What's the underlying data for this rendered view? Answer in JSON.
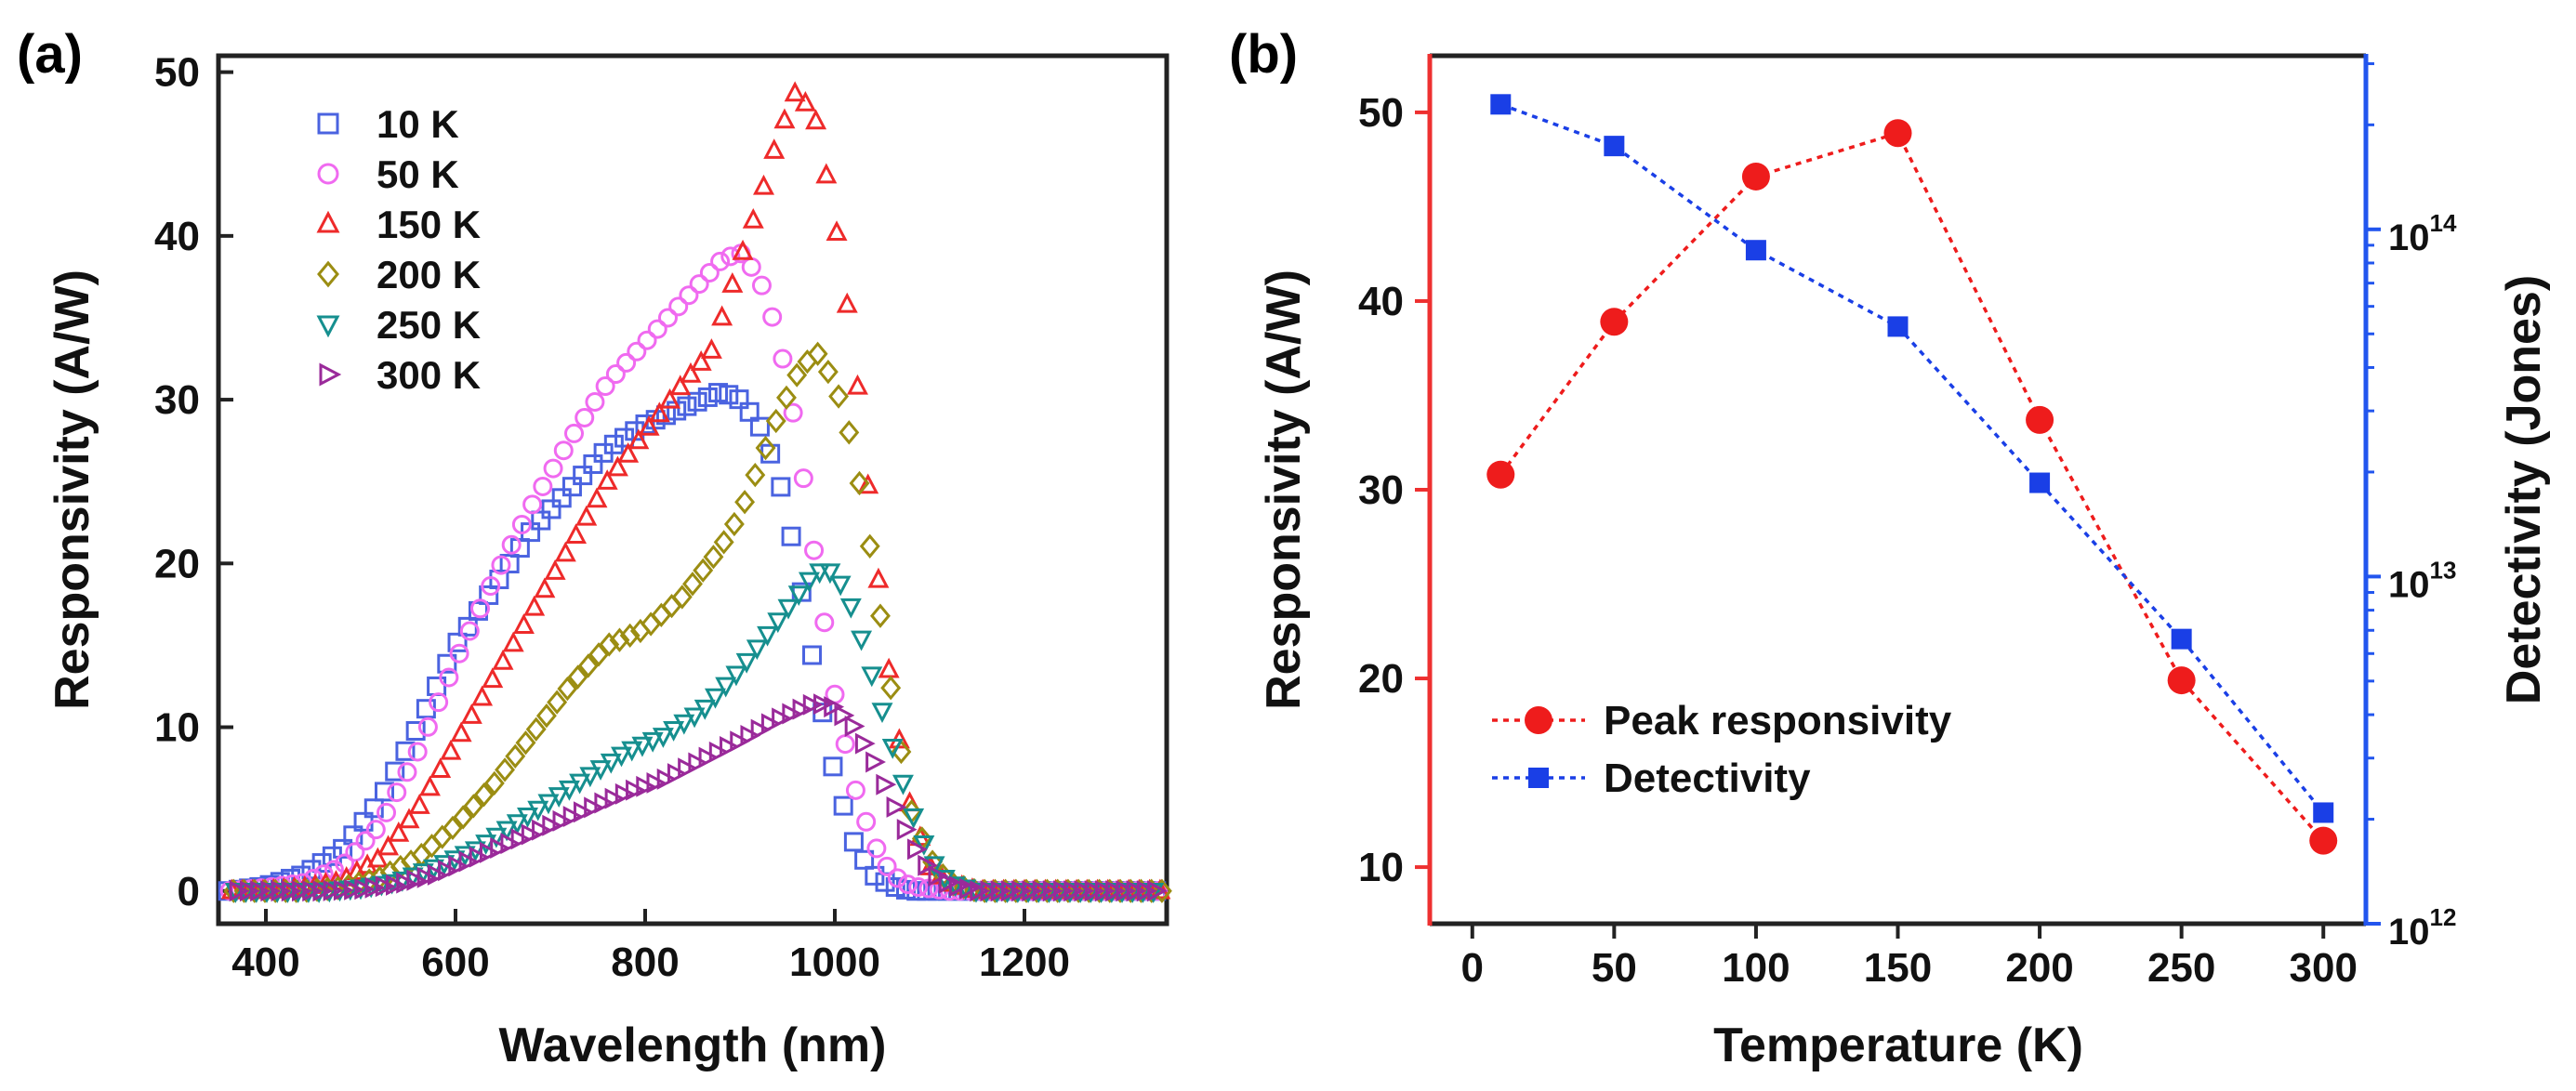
{
  "figure": {
    "panel_a_label": "(a)",
    "panel_b_label": "(b)"
  },
  "colors": {
    "s10": "#4a63e0",
    "s50": "#f06af0",
    "s150": "#ee2a2a",
    "s200": "#9b8d12",
    "s250": "#168f8f",
    "s300": "#9a2a9a",
    "peak": "#ee1c1c",
    "detect": "#1a3fe6",
    "left_axis_b": "#ee3030",
    "right_axis_b": "#2255ee"
  },
  "chart_data": [
    {
      "type": "scatter",
      "panel": "a",
      "title": "",
      "xlabel": "Wavelength (nm)",
      "ylabel": "Responsivity (A/W)",
      "xlim": [
        350,
        1350
      ],
      "ylim": [
        -2,
        51
      ],
      "xticks": [
        400,
        600,
        800,
        1000,
        1200
      ],
      "yticks": [
        0,
        10,
        20,
        30,
        40,
        50
      ],
      "legend_placement": "top-left",
      "series": [
        {
          "name": "10 K",
          "marker": "square",
          "color_key": "s10",
          "points": [
            [
              360,
              0
            ],
            [
              400,
              0.3
            ],
            [
              440,
              1
            ],
            [
              480,
              2.5
            ],
            [
              520,
              5.5
            ],
            [
              560,
              10
            ],
            [
              600,
              15
            ],
            [
              640,
              18.5
            ],
            [
              680,
              22
            ],
            [
              720,
              24.5
            ],
            [
              760,
              27
            ],
            [
              800,
              28.5
            ],
            [
              840,
              29.5
            ],
            [
              880,
              30.5
            ],
            [
              900,
              30
            ],
            [
              920,
              28.5
            ],
            [
              940,
              25.5
            ],
            [
              960,
              20
            ],
            [
              980,
              13
            ],
            [
              1000,
              7
            ],
            [
              1020,
              3
            ],
            [
              1040,
              1
            ],
            [
              1060,
              0.3
            ],
            [
              1080,
              0
            ],
            [
              1120,
              0
            ],
            [
              1200,
              0
            ],
            [
              1350,
              0
            ]
          ]
        },
        {
          "name": "50 K",
          "marker": "circle",
          "color_key": "s50",
          "points": [
            [
              360,
              0
            ],
            [
              400,
              0.2
            ],
            [
              440,
              0.5
            ],
            [
              480,
              1.5
            ],
            [
              520,
              4
            ],
            [
              560,
              8.5
            ],
            [
              600,
              14
            ],
            [
              640,
              19
            ],
            [
              680,
              23.5
            ],
            [
              720,
              27.5
            ],
            [
              760,
              31
            ],
            [
              800,
              33.5
            ],
            [
              840,
              36
            ],
            [
              880,
              38.5
            ],
            [
              900,
              39
            ],
            [
              920,
              37.5
            ],
            [
              940,
              34
            ],
            [
              960,
              28
            ],
            [
              980,
              20
            ],
            [
              1000,
              12
            ],
            [
              1020,
              6.5
            ],
            [
              1040,
              3
            ],
            [
              1060,
              1
            ],
            [
              1080,
              0.3
            ],
            [
              1120,
              0
            ],
            [
              1200,
              0
            ],
            [
              1350,
              0
            ]
          ]
        },
        {
          "name": "150 K",
          "marker": "triangle-up",
          "color_key": "s150",
          "points": [
            [
              360,
              0
            ],
            [
              400,
              0
            ],
            [
              440,
              0.2
            ],
            [
              480,
              0.6
            ],
            [
              520,
              2
            ],
            [
              560,
              5
            ],
            [
              600,
              9
            ],
            [
              640,
              13
            ],
            [
              680,
              17
            ],
            [
              720,
              21
            ],
            [
              760,
              25
            ],
            [
              800,
              28
            ],
            [
              840,
              31
            ],
            [
              870,
              33
            ],
            [
              900,
              38.5
            ],
            [
              920,
              42
            ],
            [
              940,
              46
            ],
            [
              960,
              49
            ],
            [
              980,
              47
            ],
            [
              1000,
              41
            ],
            [
              1020,
              33
            ],
            [
              1040,
              22
            ],
            [
              1060,
              12
            ],
            [
              1080,
              5
            ],
            [
              1100,
              1.5
            ],
            [
              1120,
              0.5
            ],
            [
              1150,
              0
            ],
            [
              1200,
              0
            ],
            [
              1350,
              0
            ]
          ]
        },
        {
          "name": "200 K",
          "marker": "diamond",
          "color_key": "s200",
          "points": [
            [
              360,
              0
            ],
            [
              440,
              0
            ],
            [
              480,
              0.2
            ],
            [
              520,
              0.8
            ],
            [
              560,
              2
            ],
            [
              600,
              4
            ],
            [
              640,
              6.5
            ],
            [
              680,
              9.5
            ],
            [
              720,
              12.5
            ],
            [
              760,
              15
            ],
            [
              800,
              16
            ],
            [
              840,
              18
            ],
            [
              880,
              21
            ],
            [
              900,
              23
            ],
            [
              920,
              26
            ],
            [
              940,
              29
            ],
            [
              960,
              31.5
            ],
            [
              980,
              33
            ],
            [
              1000,
              31
            ],
            [
              1020,
              27
            ],
            [
              1040,
              20
            ],
            [
              1060,
              12
            ],
            [
              1080,
              5
            ],
            [
              1100,
              2
            ],
            [
              1120,
              0.5
            ],
            [
              1150,
              0
            ],
            [
              1200,
              0
            ],
            [
              1350,
              0
            ]
          ]
        },
        {
          "name": "250 K",
          "marker": "triangle-down",
          "color_key": "s250",
          "points": [
            [
              360,
              0
            ],
            [
              460,
              0
            ],
            [
              500,
              0.2
            ],
            [
              540,
              0.6
            ],
            [
              580,
              1.5
            ],
            [
              620,
              2.5
            ],
            [
              660,
              4
            ],
            [
              700,
              5.5
            ],
            [
              740,
              7
            ],
            [
              780,
              8.5
            ],
            [
              820,
              9.5
            ],
            [
              860,
              11
            ],
            [
              900,
              13.5
            ],
            [
              940,
              16.5
            ],
            [
              980,
              19.5
            ],
            [
              1000,
              19.5
            ],
            [
              1020,
              17
            ],
            [
              1040,
              13
            ],
            [
              1060,
              9
            ],
            [
              1080,
              5
            ],
            [
              1100,
              2
            ],
            [
              1120,
              0.5
            ],
            [
              1150,
              0
            ],
            [
              1200,
              0
            ],
            [
              1350,
              0
            ]
          ]
        },
        {
          "name": "300 K",
          "marker": "triangle-right",
          "color_key": "s300",
          "points": [
            [
              360,
              0
            ],
            [
              460,
              0
            ],
            [
              500,
              0.1
            ],
            [
              540,
              0.4
            ],
            [
              580,
              1
            ],
            [
              620,
              2
            ],
            [
              660,
              3
            ],
            [
              700,
              4
            ],
            [
              740,
              5
            ],
            [
              780,
              6
            ],
            [
              820,
              6.8
            ],
            [
              860,
              8
            ],
            [
              900,
              9.2
            ],
            [
              940,
              10.5
            ],
            [
              980,
              11.5
            ],
            [
              1000,
              11.2
            ],
            [
              1020,
              10
            ],
            [
              1040,
              8
            ],
            [
              1060,
              5.5
            ],
            [
              1080,
              3
            ],
            [
              1100,
              1.2
            ],
            [
              1120,
              0.4
            ],
            [
              1150,
              0
            ],
            [
              1200,
              0
            ],
            [
              1350,
              0
            ]
          ]
        }
      ]
    },
    {
      "type": "line",
      "panel": "b",
      "title": "",
      "xlabel": "Temperature (K)",
      "ylabel": "Responsivity (A/W)",
      "ylabel_right": "Detectivity (Jones)",
      "xlim": [
        -15,
        315
      ],
      "ylim": [
        7,
        53
      ],
      "ylim_right_log10": [
        12,
        14.5
      ],
      "xticks": [
        0,
        50,
        100,
        150,
        200,
        250,
        300
      ],
      "yticks": [
        10,
        20,
        30,
        40,
        50
      ],
      "yticks_right": [
        {
          "value_log10": 12,
          "base": "10",
          "exp": "12"
        },
        {
          "value_log10": 13,
          "base": "10",
          "exp": "13"
        },
        {
          "value_log10": 14,
          "base": "10",
          "exp": "14"
        }
      ],
      "legend_placement": "bottom-left",
      "series": [
        {
          "name": "Peak responsivity",
          "axis": "left",
          "marker": "circle",
          "color_key": "peak",
          "x": [
            10,
            50,
            100,
            150,
            200,
            250,
            300
          ],
          "values": [
            30.8,
            38.9,
            46.6,
            48.9,
            33.7,
            19.9,
            11.4
          ]
        },
        {
          "name": "Detectivity",
          "axis": "right",
          "marker": "square",
          "color_key": "detect",
          "x": [
            10,
            50,
            100,
            150,
            200,
            250,
            300
          ],
          "values_log10": [
            14.36,
            14.24,
            13.94,
            13.72,
            13.27,
            12.82,
            12.32
          ]
        }
      ]
    }
  ]
}
